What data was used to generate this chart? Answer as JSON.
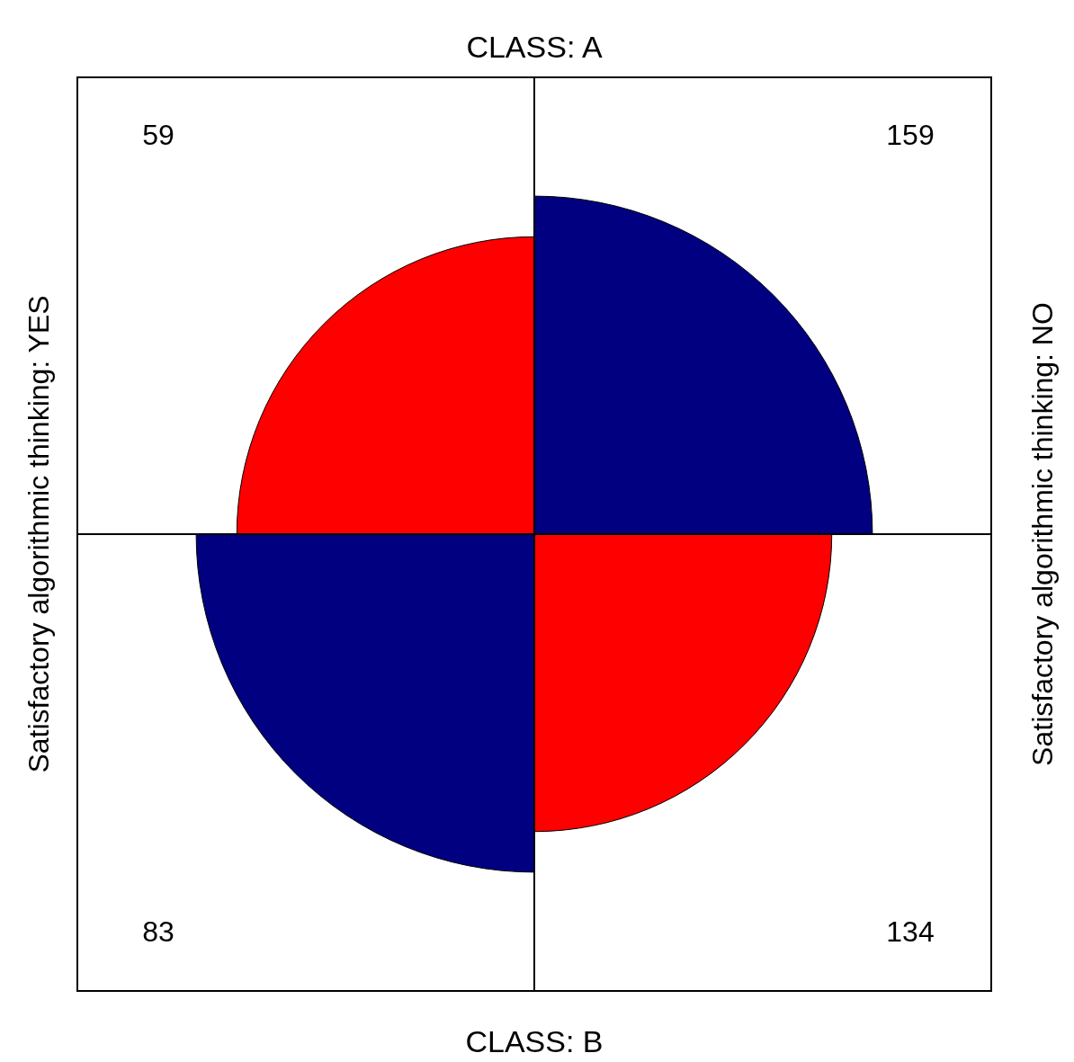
{
  "chart_data": {
    "type": "other",
    "title": "CLASS: A",
    "xlabel": "CLASS: B",
    "ylabel": "Satisfactory algorithmic thinking: YES",
    "y2label": "Satisfactory algorithmic thinking: NO",
    "values": [
      59,
      159,
      83,
      134
    ],
    "data_labels": true,
    "colors": [
      "#ff0000",
      "#000080",
      "#000080",
      "#ff0000"
    ]
  }
}
